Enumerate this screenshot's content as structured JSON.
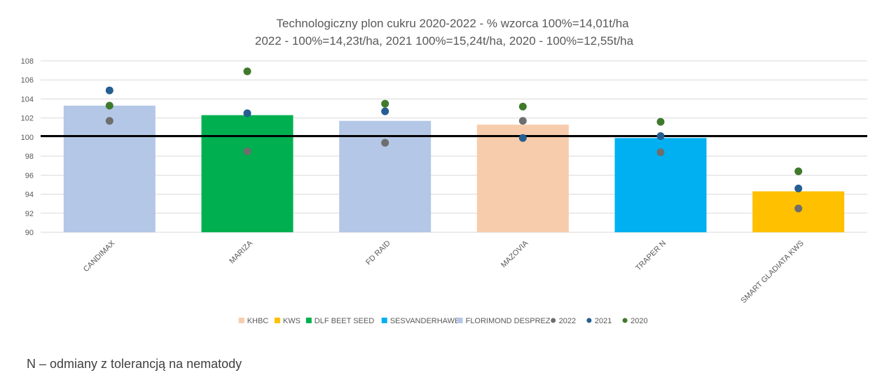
{
  "chart_data": {
    "type": "bar",
    "title": "Technologiczny plon cukru 2020-2022 - % wzorca 100%=14,01t/ha",
    "subtitle": "2022 - 100%=14,23t/ha, 2021 100%=15,24t/ha, 2020 - 100%=12,55t/ha",
    "xlabel": "",
    "ylabel": "",
    "ylim": [
      90,
      108
    ],
    "yticks": [
      90,
      92,
      94,
      96,
      98,
      100,
      102,
      104,
      106,
      108
    ],
    "grid": true,
    "reference_line": 100.1,
    "categories": [
      "CANDIMAX",
      "MARIZA",
      "FD RAID",
      "MAZOVIA",
      "TRAPER N",
      "SMART GLADIATA KWS"
    ],
    "values": [
      103.3,
      102.3,
      101.7,
      101.3,
      99.9,
      94.3
    ],
    "bar_groups": [
      "FLORIMOND DESPREZ",
      "DLF BEET SEED",
      "FLORIMOND DESPREZ",
      "KHBC",
      "SESVANDERHAWE",
      "KWS"
    ],
    "series": [
      {
        "name": "2022",
        "color": "#6e6e6e",
        "values": [
          101.7,
          98.5,
          99.4,
          101.7,
          98.4,
          92.5
        ]
      },
      {
        "name": "2021",
        "color": "#255e91",
        "values": [
          104.9,
          102.5,
          102.7,
          99.9,
          100.1,
          94.6
        ]
      },
      {
        "name": "2020",
        "color": "#3f7a2c",
        "values": [
          103.3,
          106.9,
          103.5,
          103.2,
          101.6,
          96.4
        ]
      }
    ],
    "legend_position": "bottom",
    "legend": [
      {
        "label": "KHBC",
        "kind": "bar",
        "color": "#f7ccac"
      },
      {
        "label": "KWS",
        "kind": "bar",
        "color": "#ffc000"
      },
      {
        "label": "DLF BEET SEED",
        "kind": "bar",
        "color": "#00b050"
      },
      {
        "label": "SESVANDERHAWE",
        "kind": "bar",
        "color": "#00b0f0"
      },
      {
        "label": "FLORIMOND DESPREZ",
        "kind": "bar",
        "color": "#b4c7e7"
      },
      {
        "label": "2022",
        "kind": "dot",
        "color": "#6e6e6e"
      },
      {
        "label": "2021",
        "kind": "dot",
        "color": "#255e91"
      },
      {
        "label": "2020",
        "kind": "dot",
        "color": "#3f7a2c"
      }
    ]
  },
  "footnote": "N – odmiany z tolerancją na nematody"
}
